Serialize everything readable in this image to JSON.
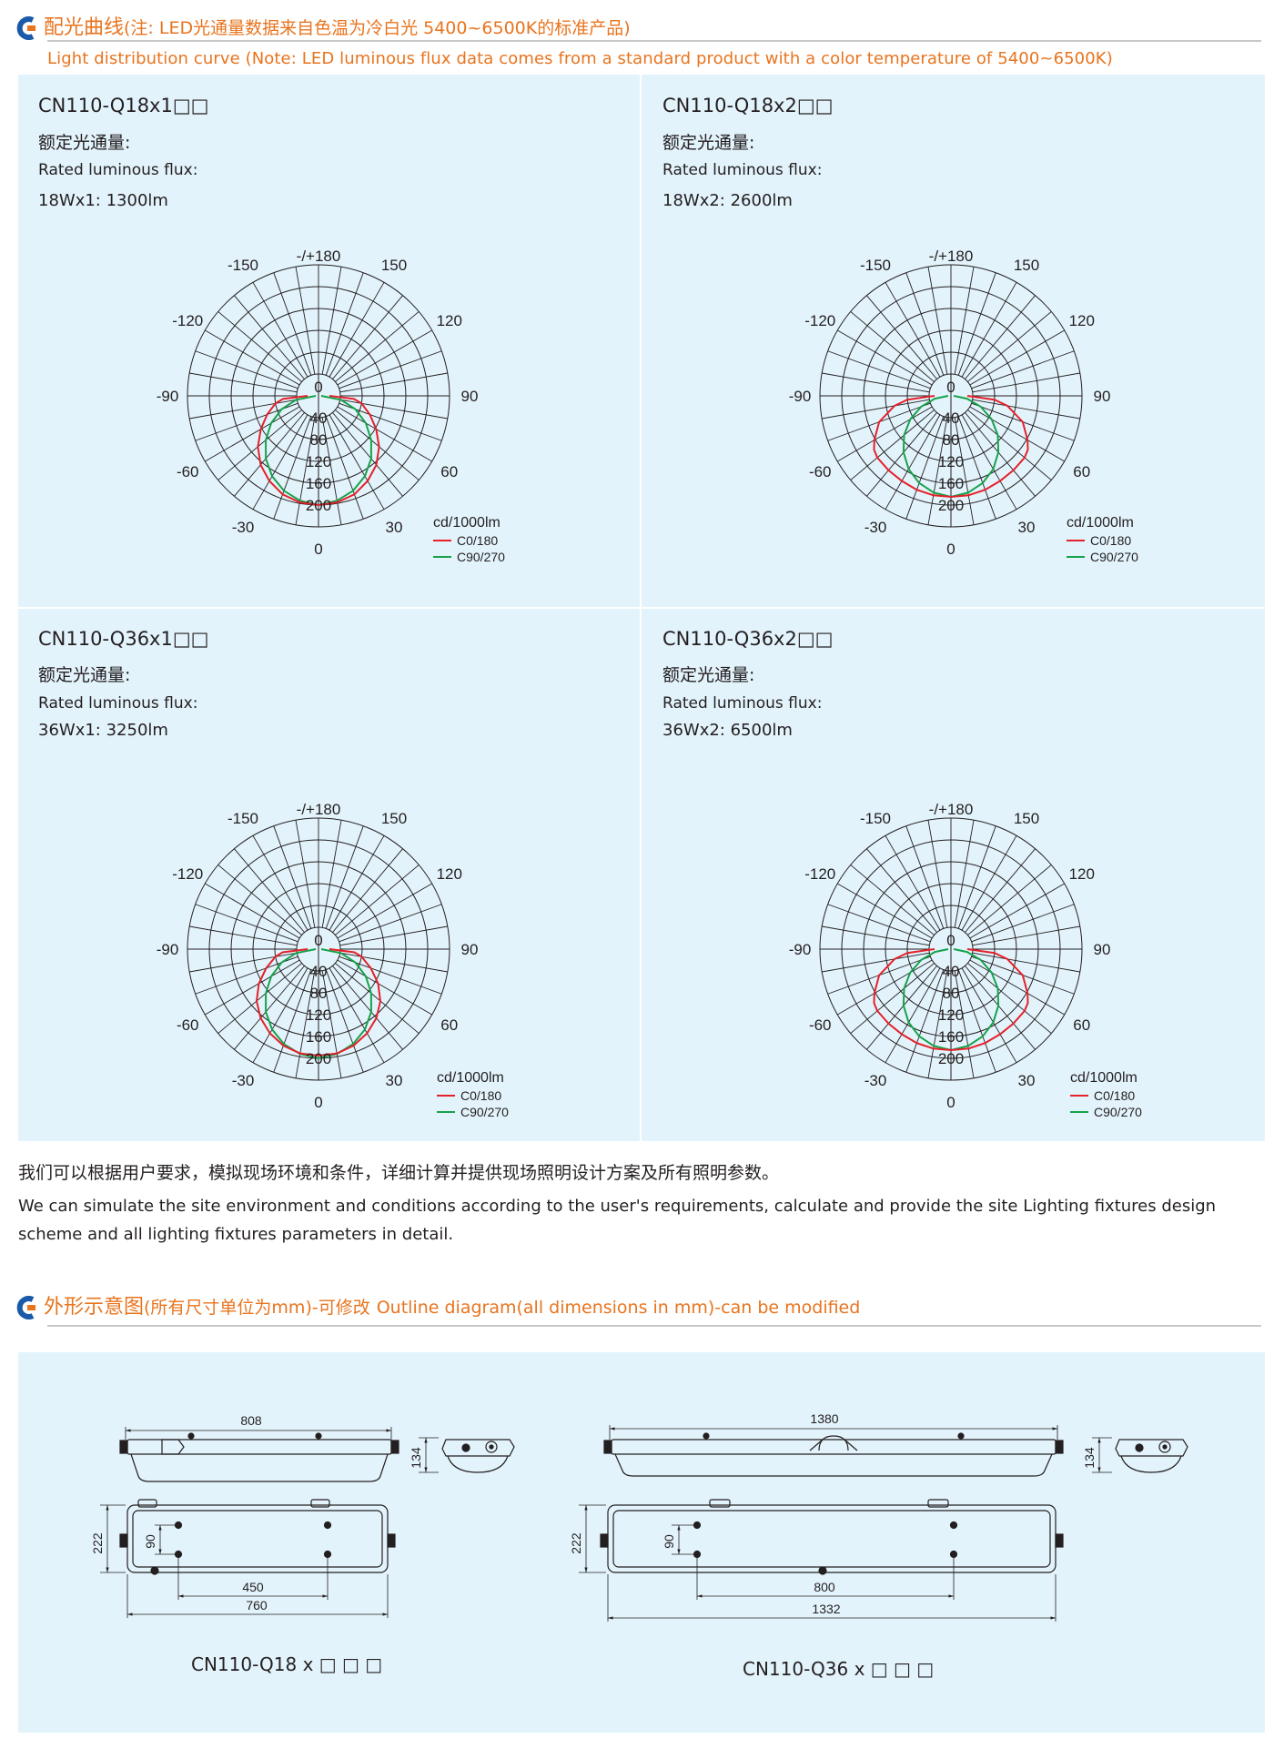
{
  "section1": {
    "title_cn": "配光曲线",
    "title_note": "(注: LED光通量数据来自色温为冷白光 5400~6500K的标准产品)",
    "subtitle_en": "Light distribution curve (Note: LED luminous flux data comes from a standard product with a color temperature of 5400~6500K)"
  },
  "panels": [
    {
      "model": "CN110-Q18x1□□",
      "rated_cn": "额定光通量:",
      "rated_en": "Rated luminous flux:",
      "flux": "18Wx1: 1300lm"
    },
    {
      "model": "CN110-Q18x2□□",
      "rated_cn": "额定光通量:",
      "rated_en": "Rated luminous flux:",
      "flux": "18Wx2: 2600lm"
    },
    {
      "model": "CN110-Q36x1□□",
      "rated_cn": "额定光通量:",
      "rated_en": "Rated luminous flux:",
      "flux": "36Wx1: 3250lm"
    },
    {
      "model": "CN110-Q36x2□□",
      "rated_cn": "额定光通量:",
      "rated_en": "Rated luminous flux:",
      "flux": "36Wx2: 6500lm"
    }
  ],
  "polar": {
    "angle_labels": [
      "-/+180",
      "150",
      "120",
      "90",
      "60",
      "30",
      "0",
      "-30",
      "-60",
      "-90",
      "-120",
      "-150"
    ],
    "radial_labels": [
      "0",
      "40",
      "80",
      "120",
      "160",
      "200"
    ],
    "unit": "cd/1000lm",
    "legend": [
      {
        "name": "C0/180",
        "color": "#e4202a"
      },
      {
        "name": "C90/270",
        "color": "#17a24a"
      }
    ],
    "max_value": 240,
    "curves": [
      {
        "c0": [
          [
            0,
            200
          ],
          [
            10,
            198
          ],
          [
            20,
            192
          ],
          [
            30,
            180
          ],
          [
            40,
            165
          ],
          [
            50,
            145
          ],
          [
            60,
            122
          ],
          [
            70,
            100
          ],
          [
            80,
            80
          ],
          [
            85,
            65
          ],
          [
            90,
            20
          ]
        ],
        "c90": [
          [
            0,
            200
          ],
          [
            10,
            195
          ],
          [
            20,
            185
          ],
          [
            30,
            170
          ],
          [
            40,
            150
          ],
          [
            50,
            126
          ],
          [
            60,
            100
          ],
          [
            70,
            72
          ],
          [
            80,
            42
          ],
          [
            90,
            5
          ]
        ]
      },
      {
        "c0": [
          [
            0,
            185
          ],
          [
            10,
            185
          ],
          [
            20,
            183
          ],
          [
            30,
            180
          ],
          [
            40,
            178
          ],
          [
            50,
            176
          ],
          [
            55,
            172
          ],
          [
            60,
            162
          ],
          [
            70,
            140
          ],
          [
            80,
            105
          ],
          [
            85,
            80
          ],
          [
            90,
            30
          ]
        ],
        "c90": [
          [
            0,
            185
          ],
          [
            10,
            180
          ],
          [
            20,
            170
          ],
          [
            30,
            155
          ],
          [
            40,
            135
          ],
          [
            50,
            112
          ],
          [
            60,
            86
          ],
          [
            70,
            58
          ],
          [
            80,
            30
          ],
          [
            90,
            5
          ]
        ]
      },
      {
        "c0": [
          [
            0,
            195
          ],
          [
            10,
            194
          ],
          [
            20,
            188
          ],
          [
            30,
            178
          ],
          [
            40,
            165
          ],
          [
            50,
            148
          ],
          [
            60,
            126
          ],
          [
            70,
            102
          ],
          [
            80,
            80
          ],
          [
            85,
            66
          ],
          [
            90,
            20
          ]
        ],
        "c90": [
          [
            0,
            200
          ],
          [
            10,
            195
          ],
          [
            20,
            185
          ],
          [
            30,
            170
          ],
          [
            40,
            150
          ],
          [
            50,
            126
          ],
          [
            60,
            100
          ],
          [
            70,
            72
          ],
          [
            80,
            42
          ],
          [
            90,
            5
          ]
        ]
      },
      {
        "c0": [
          [
            0,
            185
          ],
          [
            10,
            185
          ],
          [
            20,
            183
          ],
          [
            30,
            180
          ],
          [
            40,
            178
          ],
          [
            50,
            176
          ],
          [
            55,
            172
          ],
          [
            60,
            162
          ],
          [
            70,
            140
          ],
          [
            80,
            105
          ],
          [
            85,
            80
          ],
          [
            90,
            30
          ]
        ],
        "c90": [
          [
            0,
            185
          ],
          [
            10,
            180
          ],
          [
            20,
            170
          ],
          [
            30,
            155
          ],
          [
            40,
            135
          ],
          [
            50,
            112
          ],
          [
            60,
            86
          ],
          [
            70,
            58
          ],
          [
            80,
            30
          ],
          [
            90,
            5
          ]
        ]
      }
    ]
  },
  "info": {
    "cn": "我们可以根据用户要求，模拟现场环境和条件，详细计算并提供现场照明设计方案及所有照明参数。",
    "en": "We can simulate the site environment and conditions according to the user's requirements, calculate and provide the site Lighting fixtures design scheme and all lighting fixtures parameters in detail."
  },
  "section2": {
    "title_cn": "外形示意图",
    "title_note": "(所有尺寸单位为mm)-可修改",
    "title_en": "Outline diagram(all dimensions in mm)-can be modified"
  },
  "outline": {
    "q18": {
      "length": "808",
      "height": "134",
      "width": "222",
      "hole_h": "90",
      "hole_w": "450",
      "base": "760",
      "caption": "CN110-Q18 x □ □ □"
    },
    "q36": {
      "length": "1380",
      "height": "134",
      "width": "222",
      "hole_h": "90",
      "hole_w": "800",
      "base": "1332",
      "caption": "CN110-Q36 x □ □ □"
    }
  },
  "colors": {
    "accent": "#e8741e",
    "logo_blue": "#1a5aa8",
    "panel_bg": "#e3f3fb"
  }
}
